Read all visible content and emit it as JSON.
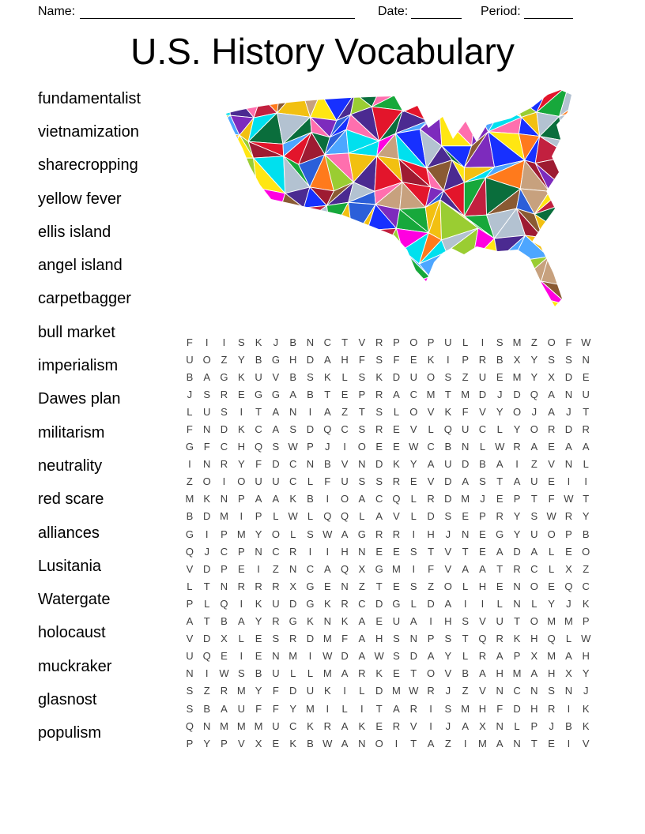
{
  "header": {
    "name_label": "Name:",
    "date_label": "Date:",
    "period_label": "Period:"
  },
  "title": "U.S. History Vocabulary",
  "word_list": [
    "fundamentalist",
    "vietnamization",
    "sharecropping",
    "yellow fever",
    "ellis island",
    "angel island",
    "carpetbagger",
    "bull market",
    "imperialism",
    "Dawes plan",
    "militarism",
    "neutrality",
    "red scare",
    "alliances",
    "Lusitania",
    "Watergate",
    "holocaust",
    "muckraker",
    "glasnost",
    "populism"
  ],
  "map": {
    "alt": "Colorful low-poly triangle mosaic map of the United States",
    "palette": [
      "#e3152b",
      "#c2203f",
      "#9e1b32",
      "#1730ff",
      "#2b5fd9",
      "#4da6ff",
      "#00e0ee",
      "#ffe612",
      "#f2c011",
      "#ff00e0",
      "#ff6fae",
      "#ff7a1c",
      "#17a83b",
      "#0a6e3c",
      "#9acd32",
      "#8a5a33",
      "#c7a17e",
      "#b3c2d1",
      "#7d2bbd",
      "#4b2a91"
    ]
  },
  "grid": {
    "rows": [
      "FIISKJBNCTVRPOPULISMZOFW",
      "UOZYBGHDAHFSFEKIPRBXYSSN",
      "BAGKUVBSKLSKDUOSZUEMYXDE",
      "JSREGGABTEPRACMTMDJDQANU",
      "LUSITANIAZTSLOVKFVYOJAJT",
      "FNDKCASDQCSREVLQUCLYORDR",
      "GFCHQSWPJIOEEWCBNLWRAEAA",
      "INRYFDCNBVNDKYAUDBAIZVNL",
      "ZOIOUUCLFUSSREVDASTAUEII",
      "MKNPAAKBIOACQLRDMJEPTFWT",
      "BDMIPLWLQQLAVLDSEPRYSWRY",
      "GIPMYOLSWAGRRIHJNEGYUOPB",
      "QJCPNCRIIHNEESTVTEADALEO",
      "VDPEIZNCAQXGMIFVAATRCLXZ",
      "LTNRRRXGENZTESZOLHENOEQC",
      "PLQIKUDGKRCDGLDAIILNLYJK",
      "ATBAYRGKNKAEUAIHSVUTOMMP",
      "VDXLESRDMFAHSNPSTQRKHQLW",
      "UQEIENMIWDAWSDAYLRAPXMAH",
      "NIWSBULLMARKETOVBAHMAHXY",
      "SZRMYFDUKILDMWRJZVNCNSNJ",
      "SBAUFFYMILITARISMHFDHRIK",
      "QNMMMUCKRAKERVIJAXNLPJBK",
      "PYPVXEKBWANOITAZIMANTEIV"
    ]
  }
}
